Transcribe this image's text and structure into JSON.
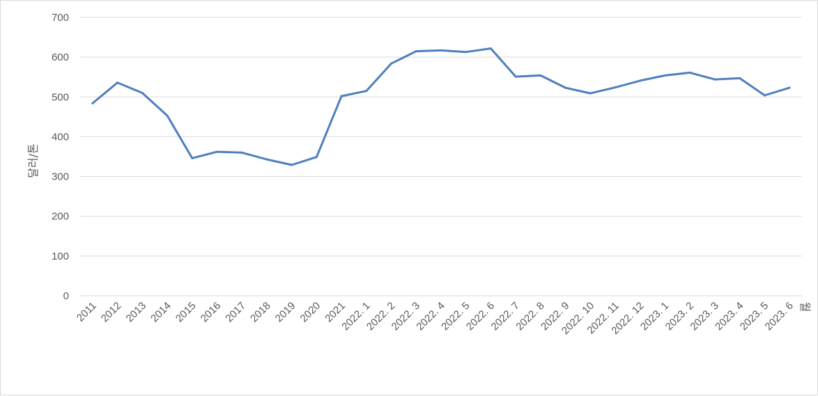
{
  "chart_data": {
    "type": "line",
    "title": "",
    "ylabel": "달러/톤",
    "xlabel": "월",
    "ylim": [
      0,
      700
    ],
    "yticks": [
      0,
      100,
      200,
      300,
      400,
      500,
      600,
      700
    ],
    "grid": true,
    "legend": "none",
    "categories": [
      "2011",
      "2012",
      "2013",
      "2014",
      "2015",
      "2016",
      "2017",
      "2018",
      "2019",
      "2020",
      "2021",
      "2022. 1",
      "2022. 2",
      "2022. 3",
      "2022. 4",
      "2022. 5",
      "2022. 6",
      "2022. 7",
      "2022. 8",
      "2022. 9",
      "2022. 10",
      "2022. 11",
      "2022. 12",
      "2023. 1",
      "2023. 2",
      "2023. 3",
      "2023. 4",
      "2023. 5",
      "2023. 6"
    ],
    "series": [
      {
        "values": [
          484,
          536,
          510,
          453,
          346,
          362,
          360,
          343,
          329,
          349,
          502,
          515,
          584,
          615,
          617,
          613,
          622,
          551,
          554,
          523,
          509,
          524,
          541,
          554,
          561,
          544,
          547,
          504,
          523
        ],
        "color": "#4e7fbd"
      }
    ]
  }
}
